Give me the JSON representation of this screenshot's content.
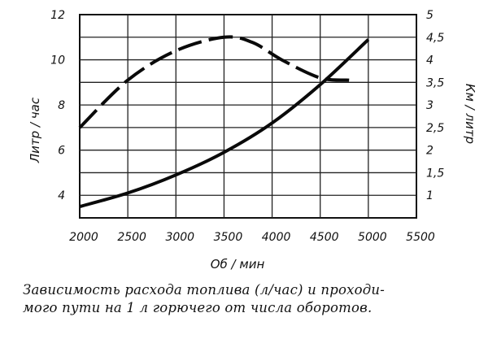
{
  "chart_data": {
    "type": "line",
    "xlabel": "Об / мин",
    "ylabel_left": "Литр / час",
    "ylabel_right": "Км / литр",
    "x_ticks": [
      "2000",
      "2500",
      "3000",
      "3500",
      "4000",
      "4500",
      "5000",
      "5500"
    ],
    "y_left_ticks": [
      "4",
      "6",
      "8",
      "10",
      "12"
    ],
    "y_right_ticks": [
      "1",
      "1,5",
      "2",
      "2,5",
      "3",
      "3,5",
      "4",
      "4,5",
      "5"
    ],
    "xlim": [
      2000,
      5500
    ],
    "ylim_left": [
      3,
      12
    ],
    "ylim_right": [
      0.5,
      5
    ],
    "grid": true,
    "series": [
      {
        "axis": "left",
        "style": "solid",
        "x": [
          2000,
          2500,
          3000,
          3500,
          4000,
          4500,
          5000
        ],
        "values": [
          3.5,
          4.1,
          4.9,
          5.9,
          7.2,
          8.9,
          10.9
        ]
      },
      {
        "axis": "right",
        "style": "dashed",
        "x": [
          2000,
          2500,
          3000,
          3500,
          3800,
          4100,
          4500,
          4800
        ],
        "values": [
          2.5,
          3.55,
          4.2,
          4.5,
          4.38,
          4.0,
          3.6,
          3.55
        ]
      }
    ]
  },
  "caption": {
    "line1": "Зависимость расхода топлива (л/час) и проходи-",
    "line2": "мого пути на 1  л  горючего  от числа оборотов."
  }
}
